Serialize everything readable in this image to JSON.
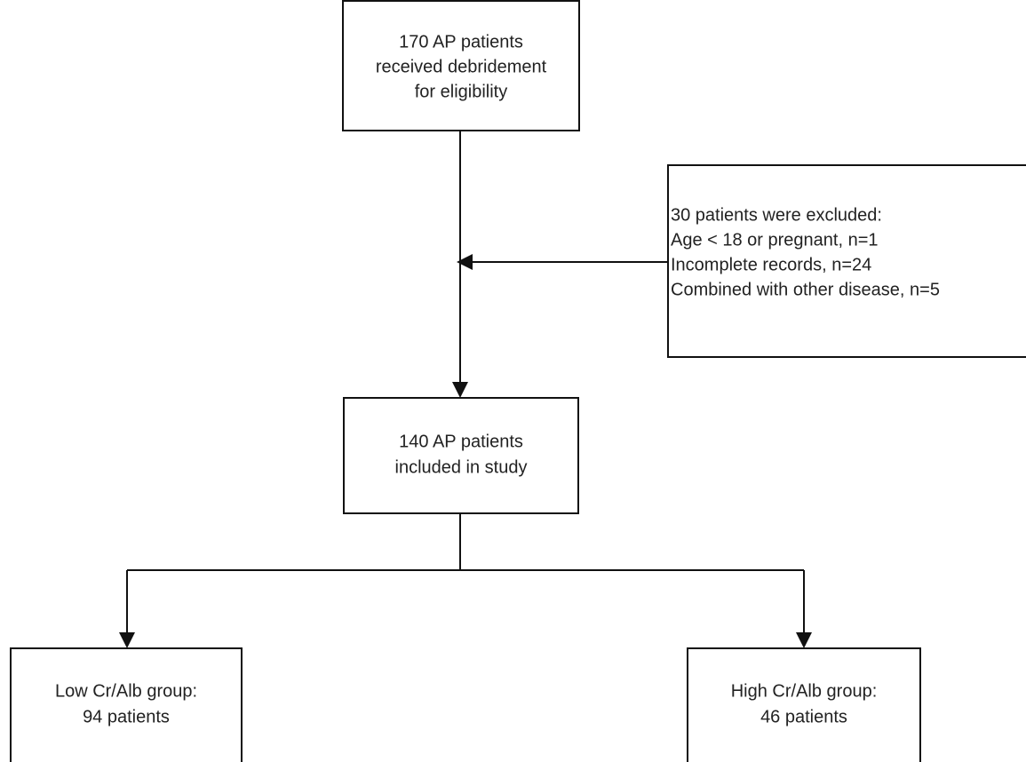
{
  "nodes": [
    {
      "lines": [
        "170 AP patients",
        "received debridement",
        "for eligibility"
      ]
    },
    {
      "lines": [
        "30 patients were excluded:",
        "Age < 18 or pregnant, n=1",
        "Incomplete records, n=24",
        "Combined with other disease, n=5"
      ]
    },
    {
      "lines": [
        "140 AP patients",
        "included in study"
      ]
    },
    {
      "lines": [
        "Low Cr/Alb group:",
        "94 patients"
      ]
    },
    {
      "lines": [
        "High Cr/Alb group:",
        "46 patients"
      ]
    }
  ]
}
